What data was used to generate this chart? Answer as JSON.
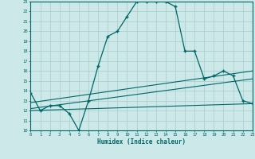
{
  "xlabel": "Humidex (Indice chaleur)",
  "bg_color": "#cce8e8",
  "line_color": "#006666",
  "grid_color": "#aacccc",
  "xlim": [
    0,
    23
  ],
  "ylim": [
    10,
    23
  ],
  "xticks": [
    0,
    1,
    2,
    3,
    4,
    5,
    6,
    7,
    8,
    9,
    10,
    11,
    12,
    13,
    14,
    15,
    16,
    17,
    18,
    19,
    20,
    21,
    22,
    23
  ],
  "yticks": [
    10,
    11,
    12,
    13,
    14,
    15,
    16,
    17,
    18,
    19,
    20,
    21,
    22,
    23
  ],
  "curve1_x": [
    0,
    1,
    2,
    3,
    4,
    5,
    6,
    7,
    8,
    9,
    10,
    11,
    12,
    13,
    14,
    15,
    16,
    17,
    18,
    19,
    20,
    21,
    22,
    23
  ],
  "curve1_y": [
    13.8,
    12.0,
    12.5,
    12.5,
    11.7,
    10.0,
    13.0,
    16.5,
    19.5,
    20.0,
    21.5,
    23.0,
    23.0,
    23.0,
    23.0,
    22.5,
    18.0,
    18.0,
    15.2,
    15.5,
    16.0,
    15.5,
    13.0,
    12.7
  ],
  "line2_x": [
    0,
    23
  ],
  "line2_y": [
    12.0,
    12.7
  ],
  "line3_x": [
    0,
    23
  ],
  "line3_y": [
    12.2,
    15.2
  ],
  "line4_x": [
    0,
    23
  ],
  "line4_y": [
    12.8,
    16.0
  ]
}
